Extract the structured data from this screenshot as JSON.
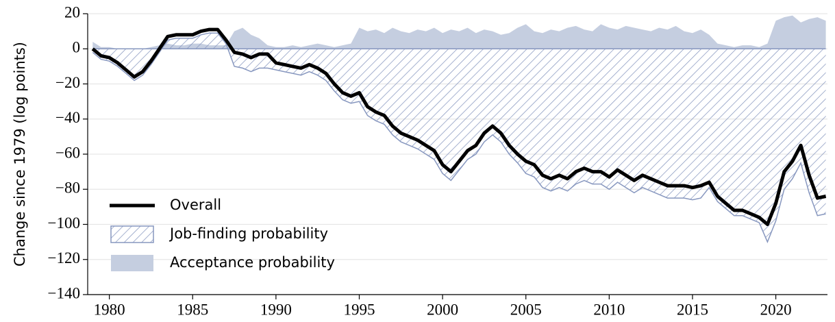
{
  "chart_data": {
    "type": "line",
    "y_label": "Change since 1979 (log points)",
    "x": [
      1979.0,
      1979.5,
      1980.0,
      1980.5,
      1981.0,
      1981.5,
      1982.0,
      1982.5,
      1983.0,
      1983.5,
      1984.0,
      1984.5,
      1985.0,
      1985.5,
      1986.0,
      1986.5,
      1987.0,
      1987.5,
      1988.0,
      1988.5,
      1989.0,
      1989.5,
      1990.0,
      1990.5,
      1991.0,
      1991.5,
      1992.0,
      1992.5,
      1993.0,
      1993.5,
      1994.0,
      1994.5,
      1995.0,
      1995.5,
      1996.0,
      1996.5,
      1997.0,
      1997.5,
      1998.0,
      1998.5,
      1999.0,
      1999.5,
      2000.0,
      2000.5,
      2001.0,
      2001.5,
      2002.0,
      2002.5,
      2003.0,
      2003.5,
      2004.0,
      2004.5,
      2005.0,
      2005.5,
      2006.0,
      2006.5,
      2007.0,
      2007.5,
      2008.0,
      2008.5,
      2009.0,
      2009.5,
      2010.0,
      2010.5,
      2011.0,
      2011.5,
      2012.0,
      2012.5,
      2013.0,
      2013.5,
      2014.0,
      2014.5,
      2015.0,
      2015.5,
      2016.0,
      2016.5,
      2017.0,
      2017.5,
      2018.0,
      2018.5,
      2019.0,
      2019.5,
      2020.0,
      2020.5,
      2021.0,
      2021.5,
      2022.0,
      2022.5,
      2023.0
    ],
    "series": [
      {
        "name": "Acceptance probability",
        "kind": "area",
        "color": "#c5cee0",
        "values": [
          4,
          1,
          1,
          0,
          0,
          0,
          0,
          1,
          2,
          3,
          2,
          2,
          3,
          3,
          2,
          2,
          2,
          10,
          12,
          8,
          6,
          2,
          1,
          1,
          2,
          1,
          2,
          3,
          2,
          1,
          2,
          3,
          12,
          10,
          11,
          9,
          12,
          10,
          9,
          11,
          10,
          12,
          9,
          11,
          10,
          12,
          9,
          11,
          10,
          8,
          9,
          12,
          14,
          10,
          9,
          11,
          10,
          12,
          13,
          11,
          10,
          14,
          12,
          11,
          13,
          12,
          11,
          10,
          12,
          11,
          13,
          10,
          9,
          11,
          8,
          3,
          2,
          1,
          2,
          2,
          1,
          3,
          16,
          18,
          19,
          15,
          17,
          18,
          16
        ]
      },
      {
        "name": "Job-finding probability",
        "kind": "hatch",
        "color": "#8797bf",
        "values": [
          -2,
          -6,
          -7,
          -10,
          -14,
          -18,
          -15,
          -9,
          -2,
          5,
          6,
          6,
          6,
          8,
          9,
          9,
          3,
          -10,
          -11,
          -13,
          -11,
          -11,
          -12,
          -13,
          -14,
          -15,
          -13,
          -15,
          -18,
          -24,
          -29,
          -31,
          -30,
          -38,
          -41,
          -43,
          -49,
          -53,
          -55,
          -57,
          -60,
          -63,
          -71,
          -75,
          -69,
          -63,
          -60,
          -53,
          -49,
          -53,
          -60,
          -65,
          -71,
          -73,
          -79,
          -81,
          -79,
          -81,
          -77,
          -75,
          -77,
          -77,
          -80,
          -76,
          -79,
          -82,
          -79,
          -81,
          -83,
          -85,
          -85,
          -85,
          -86,
          -85,
          -79,
          -87,
          -91,
          -95,
          -95,
          -97,
          -99,
          -110,
          -98,
          -80,
          -74,
          -65,
          -82,
          -95,
          -94
        ]
      },
      {
        "name": "Overall",
        "kind": "line",
        "color": "#000000",
        "values": [
          0,
          -4,
          -5,
          -8,
          -12,
          -16,
          -13,
          -7,
          0,
          7,
          8,
          8,
          8,
          10,
          11,
          11,
          5,
          -2,
          -3,
          -5,
          -3,
          -3,
          -8,
          -9,
          -10,
          -11,
          -9,
          -11,
          -14,
          -20,
          -25,
          -27,
          -25,
          -33,
          -36,
          -38,
          -44,
          -48,
          -50,
          -52,
          -55,
          -58,
          -66,
          -70,
          -64,
          -58,
          -55,
          -48,
          -44,
          -48,
          -55,
          -60,
          -64,
          -66,
          -72,
          -74,
          -72,
          -74,
          -70,
          -68,
          -70,
          -70,
          -73,
          -69,
          -72,
          -75,
          -72,
          -74,
          -76,
          -78,
          -78,
          -78,
          -79,
          -78,
          -76,
          -84,
          -88,
          -92,
          -92,
          -94,
          -96,
          -100,
          -88,
          -70,
          -64,
          -55,
          -72,
          -85,
          -84
        ]
      }
    ],
    "xlim": [
      1978.7,
      2023.1
    ],
    "xticks": [
      1980,
      1985,
      1990,
      1995,
      2000,
      2005,
      2010,
      2015,
      2020
    ],
    "ylim": [
      -140,
      20
    ],
    "yticks": [
      20,
      0,
      {
        "value": -20,
        "label": "−20"
      },
      {
        "value": -40,
        "label": "−40"
      },
      {
        "value": -60,
        "label": "−60"
      },
      {
        "value": -80,
        "label": "−80"
      },
      {
        "value": -100,
        "label": "−100"
      },
      {
        "value": -120,
        "label": "−120"
      },
      {
        "value": -140,
        "label": "−140"
      }
    ],
    "grid": true,
    "legend": "lower left"
  }
}
